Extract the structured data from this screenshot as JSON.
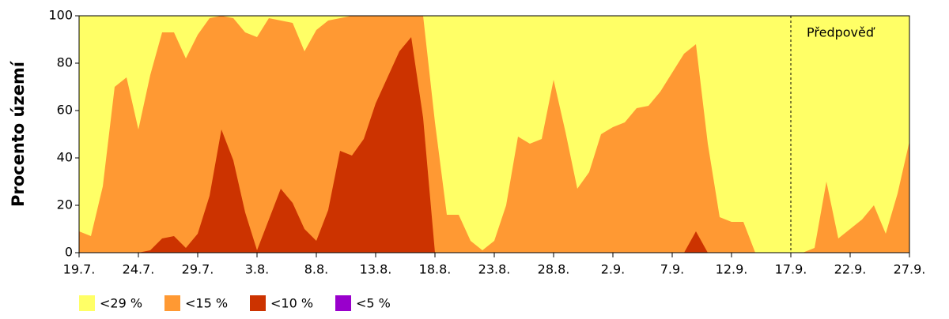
{
  "chart_data": {
    "type": "area",
    "y_label": "Procento území",
    "categories": [
      "19.7.",
      null,
      null,
      null,
      null,
      "24.7.",
      null,
      null,
      null,
      null,
      "29.7.",
      null,
      null,
      null,
      null,
      "3.8.",
      null,
      null,
      null,
      null,
      "8.8.",
      null,
      null,
      null,
      null,
      "13.8.",
      null,
      null,
      null,
      null,
      "18.8.",
      null,
      null,
      null,
      null,
      "23.8.",
      null,
      null,
      null,
      null,
      "28.8.",
      null,
      null,
      null,
      null,
      "2.9.",
      null,
      null,
      null,
      null,
      "7.9.",
      null,
      null,
      null,
      null,
      "12.9.",
      null,
      null,
      null,
      null,
      "17.9.",
      null,
      null,
      null,
      null,
      "22.9.",
      null,
      null,
      null,
      null,
      "27.9."
    ],
    "series": [
      {
        "name": "<29 %",
        "color": "#ffff66",
        "values": [
          100,
          100,
          100,
          100,
          100,
          100,
          100,
          100,
          100,
          100,
          100,
          100,
          100,
          100,
          100,
          100,
          100,
          100,
          100,
          100,
          100,
          100,
          100,
          100,
          100,
          100,
          100,
          100,
          100,
          100,
          100,
          100,
          100,
          100,
          100,
          100,
          100,
          100,
          100,
          100,
          100,
          100,
          100,
          100,
          100,
          100,
          100,
          100,
          100,
          100,
          100,
          100,
          100,
          100,
          100,
          100,
          100,
          100,
          100,
          100,
          100,
          100,
          100,
          100,
          100,
          100,
          100,
          100,
          100,
          100,
          100
        ]
      },
      {
        "name": "<15 %",
        "color": "#ff9933",
        "values": [
          9,
          7,
          28,
          70,
          74,
          52,
          75,
          93,
          93,
          82,
          92,
          99,
          100,
          99,
          93,
          91,
          99,
          98,
          97,
          85,
          94,
          98,
          99,
          100,
          100,
          100,
          100,
          100,
          100,
          100,
          55,
          16,
          16,
          5,
          1,
          5,
          20,
          49,
          46,
          48,
          73,
          51,
          27,
          34,
          50,
          53,
          55,
          61,
          62,
          68,
          76,
          84,
          88,
          46,
          15,
          13,
          13,
          0,
          0,
          0,
          0,
          0,
          2,
          30,
          6,
          10,
          14,
          20,
          8,
          25,
          47
        ]
      },
      {
        "name": "<10 %",
        "color": "#cc3300",
        "values": [
          0,
          0,
          0,
          0,
          0,
          0,
          1,
          6,
          7,
          2,
          8,
          24,
          52,
          39,
          17,
          1,
          14,
          27,
          21,
          10,
          5,
          18,
          43,
          41,
          48,
          63,
          74,
          85,
          91,
          57,
          0,
          0,
          0,
          0,
          0,
          0,
          0,
          0,
          0,
          0,
          0,
          0,
          0,
          0,
          0,
          0,
          0,
          0,
          0,
          0,
          0,
          0,
          9,
          0,
          0,
          0,
          0,
          0,
          0,
          0,
          0,
          0,
          0,
          0,
          0,
          0,
          0,
          0,
          0,
          0,
          0
        ]
      },
      {
        "name": "<5 %",
        "color": "#9900cc",
        "values": [
          0,
          0,
          0,
          0,
          0,
          0,
          0,
          0,
          0,
          0,
          0,
          0,
          0,
          0,
          0,
          0,
          0,
          0,
          0,
          0,
          0,
          0,
          0,
          0,
          0,
          0,
          0,
          0,
          0,
          0,
          0,
          0,
          0,
          0,
          0,
          0,
          0,
          0,
          0,
          0,
          0,
          0,
          0,
          0,
          0,
          0,
          0,
          0,
          0,
          0,
          0,
          0,
          0,
          0,
          0,
          0,
          0,
          0,
          0,
          0,
          0,
          0,
          0,
          0,
          0,
          0,
          0,
          0,
          0,
          0,
          0
        ]
      }
    ],
    "ylim": [
      0,
      100
    ],
    "yticks": [
      0,
      20,
      40,
      60,
      80,
      100
    ],
    "annotations": [
      {
        "text": "Předpověď",
        "x": "17.9."
      }
    ]
  }
}
